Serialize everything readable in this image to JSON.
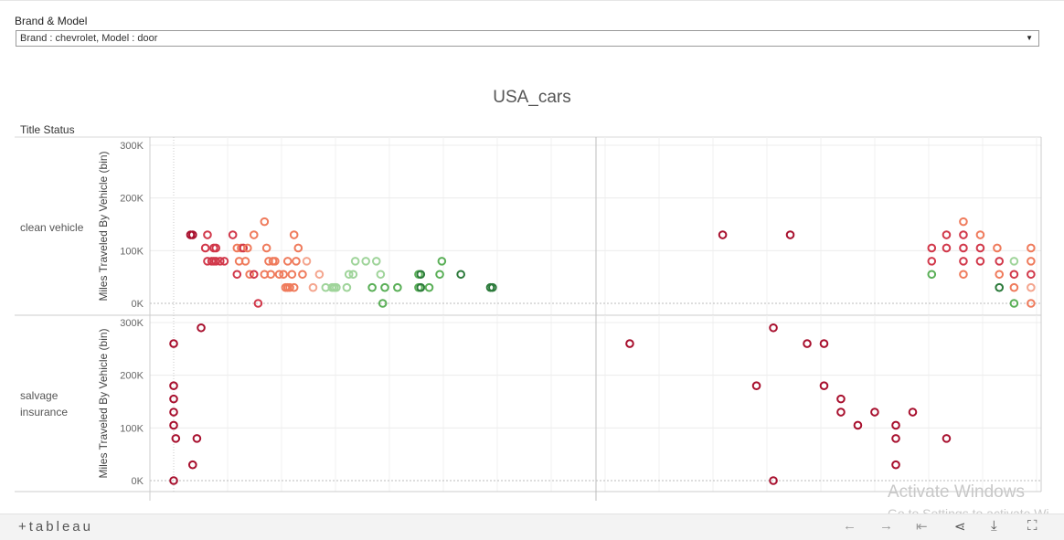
{
  "filter": {
    "title": "Brand & Model",
    "value": "Brand : chevrolet, Model : door"
  },
  "footer": {
    "logo_text": "+tableau"
  },
  "watermark": {
    "line1": "Activate Windows",
    "line2": "Go to Settings to activate Wi"
  },
  "chart_data": {
    "type": "scatter",
    "title": "USA_cars",
    "row_header": "Title Status",
    "ylabel": "Miles Traveled By Vehicle (bin)",
    "yticks": [
      "300K",
      "200K",
      "100K",
      "0K"
    ],
    "ylim": [
      0,
      300000
    ],
    "xlabel": "",
    "colors": {
      "deep_red": "#a8102e",
      "red": "#d1384a",
      "salmon": "#ef7b5c",
      "light_salmon": "#f4a58e",
      "light_green": "#9fd49a",
      "green": "#5aaf57",
      "dark_green": "#2c7a3b"
    },
    "panes": [
      {
        "label": "clean vehicle",
        "points": [
          {
            "x": 0.04,
            "y": 130000,
            "c": "deep_red"
          },
          {
            "x": 0.045,
            "y": 130000,
            "c": "deep_red"
          },
          {
            "x": 0.08,
            "y": 130000,
            "c": "red"
          },
          {
            "x": 0.075,
            "y": 105000,
            "c": "red"
          },
          {
            "x": 0.095,
            "y": 105000,
            "c": "red"
          },
          {
            "x": 0.1,
            "y": 105000,
            "c": "red"
          },
          {
            "x": 0.08,
            "y": 80000,
            "c": "red"
          },
          {
            "x": 0.09,
            "y": 80000,
            "c": "red"
          },
          {
            "x": 0.095,
            "y": 80000,
            "c": "red"
          },
          {
            "x": 0.1,
            "y": 80000,
            "c": "red"
          },
          {
            "x": 0.11,
            "y": 80000,
            "c": "red"
          },
          {
            "x": 0.12,
            "y": 80000,
            "c": "red"
          },
          {
            "x": 0.14,
            "y": 130000,
            "c": "red"
          },
          {
            "x": 0.155,
            "y": 80000,
            "c": "salmon"
          },
          {
            "x": 0.15,
            "y": 55000,
            "c": "red"
          },
          {
            "x": 0.15,
            "y": 105000,
            "c": "salmon"
          },
          {
            "x": 0.16,
            "y": 105000,
            "c": "salmon"
          },
          {
            "x": 0.165,
            "y": 105000,
            "c": "red"
          },
          {
            "x": 0.175,
            "y": 105000,
            "c": "salmon"
          },
          {
            "x": 0.17,
            "y": 80000,
            "c": "salmon"
          },
          {
            "x": 0.18,
            "y": 55000,
            "c": "salmon"
          },
          {
            "x": 0.19,
            "y": 55000,
            "c": "red"
          },
          {
            "x": 0.19,
            "y": 130000,
            "c": "salmon"
          },
          {
            "x": 0.2,
            "y": 0,
            "c": "red"
          },
          {
            "x": 0.215,
            "y": 155000,
            "c": "salmon"
          },
          {
            "x": 0.22,
            "y": 105000,
            "c": "salmon"
          },
          {
            "x": 0.215,
            "y": 55000,
            "c": "salmon"
          },
          {
            "x": 0.225,
            "y": 80000,
            "c": "salmon"
          },
          {
            "x": 0.23,
            "y": 55000,
            "c": "salmon"
          },
          {
            "x": 0.235,
            "y": 80000,
            "c": "salmon"
          },
          {
            "x": 0.24,
            "y": 80000,
            "c": "salmon"
          },
          {
            "x": 0.25,
            "y": 55000,
            "c": "salmon"
          },
          {
            "x": 0.26,
            "y": 55000,
            "c": "salmon"
          },
          {
            "x": 0.265,
            "y": 30000,
            "c": "salmon"
          },
          {
            "x": 0.27,
            "y": 30000,
            "c": "salmon"
          },
          {
            "x": 0.27,
            "y": 80000,
            "c": "salmon"
          },
          {
            "x": 0.275,
            "y": 30000,
            "c": "salmon"
          },
          {
            "x": 0.28,
            "y": 55000,
            "c": "salmon"
          },
          {
            "x": 0.285,
            "y": 30000,
            "c": "salmon"
          },
          {
            "x": 0.29,
            "y": 80000,
            "c": "salmon"
          },
          {
            "x": 0.285,
            "y": 130000,
            "c": "salmon"
          },
          {
            "x": 0.295,
            "y": 105000,
            "c": "salmon"
          },
          {
            "x": 0.305,
            "y": 55000,
            "c": "salmon"
          },
          {
            "x": 0.315,
            "y": 80000,
            "c": "light_salmon"
          },
          {
            "x": 0.33,
            "y": 30000,
            "c": "light_salmon"
          },
          {
            "x": 0.345,
            "y": 55000,
            "c": "light_salmon"
          },
          {
            "x": 0.36,
            "y": 30000,
            "c": "light_green"
          },
          {
            "x": 0.375,
            "y": 30000,
            "c": "light_green"
          },
          {
            "x": 0.38,
            "y": 30000,
            "c": "light_green"
          },
          {
            "x": 0.385,
            "y": 30000,
            "c": "light_green"
          },
          {
            "x": 0.41,
            "y": 30000,
            "c": "light_green"
          },
          {
            "x": 0.415,
            "y": 55000,
            "c": "light_green"
          },
          {
            "x": 0.425,
            "y": 55000,
            "c": "light_green"
          },
          {
            "x": 0.43,
            "y": 80000,
            "c": "light_green"
          },
          {
            "x": 0.455,
            "y": 80000,
            "c": "light_green"
          },
          {
            "x": 0.47,
            "y": 30000,
            "c": "green"
          },
          {
            "x": 0.48,
            "y": 80000,
            "c": "light_green"
          },
          {
            "x": 0.49,
            "y": 55000,
            "c": "light_green"
          },
          {
            "x": 0.495,
            "y": 0,
            "c": "green"
          },
          {
            "x": 0.5,
            "y": 30000,
            "c": "green"
          },
          {
            "x": 0.53,
            "y": 30000,
            "c": "green"
          },
          {
            "x": 0.58,
            "y": 30000,
            "c": "green"
          },
          {
            "x": 0.58,
            "y": 55000,
            "c": "green"
          },
          {
            "x": 0.585,
            "y": 30000,
            "c": "dark_green"
          },
          {
            "x": 0.585,
            "y": 55000,
            "c": "dark_green"
          },
          {
            "x": 0.605,
            "y": 30000,
            "c": "green"
          },
          {
            "x": 0.63,
            "y": 55000,
            "c": "green"
          },
          {
            "x": 0.635,
            "y": 80000,
            "c": "green"
          },
          {
            "x": 0.68,
            "y": 55000,
            "c": "dark_green"
          },
          {
            "x": 0.75,
            "y": 30000,
            "c": "dark_green"
          },
          {
            "x": 0.755,
            "y": 30000,
            "c": "dark_green"
          },
          {
            "x": 1.3,
            "y": 130000,
            "c": "deep_red"
          },
          {
            "x": 1.46,
            "y": 130000,
            "c": "deep_red"
          },
          {
            "x": 1.795,
            "y": 105000,
            "c": "red"
          },
          {
            "x": 1.795,
            "y": 80000,
            "c": "red"
          },
          {
            "x": 1.795,
            "y": 55000,
            "c": "green"
          },
          {
            "x": 1.83,
            "y": 130000,
            "c": "red"
          },
          {
            "x": 1.83,
            "y": 105000,
            "c": "red"
          },
          {
            "x": 1.87,
            "y": 155000,
            "c": "salmon"
          },
          {
            "x": 1.87,
            "y": 130000,
            "c": "red"
          },
          {
            "x": 1.87,
            "y": 105000,
            "c": "red"
          },
          {
            "x": 1.87,
            "y": 80000,
            "c": "red"
          },
          {
            "x": 1.87,
            "y": 55000,
            "c": "salmon"
          },
          {
            "x": 1.91,
            "y": 130000,
            "c": "salmon"
          },
          {
            "x": 1.91,
            "y": 105000,
            "c": "red"
          },
          {
            "x": 1.91,
            "y": 80000,
            "c": "red"
          },
          {
            "x": 1.95,
            "y": 105000,
            "c": "salmon"
          },
          {
            "x": 1.955,
            "y": 80000,
            "c": "red"
          },
          {
            "x": 1.955,
            "y": 55000,
            "c": "salmon"
          },
          {
            "x": 1.955,
            "y": 30000,
            "c": "dark_green"
          },
          {
            "x": 1.99,
            "y": 80000,
            "c": "light_green"
          },
          {
            "x": 1.99,
            "y": 55000,
            "c": "red"
          },
          {
            "x": 1.99,
            "y": 30000,
            "c": "salmon"
          },
          {
            "x": 1.99,
            "y": 0,
            "c": "green"
          },
          {
            "x": 2.03,
            "y": 105000,
            "c": "salmon"
          },
          {
            "x": 2.03,
            "y": 80000,
            "c": "salmon"
          },
          {
            "x": 2.03,
            "y": 55000,
            "c": "red"
          },
          {
            "x": 2.03,
            "y": 30000,
            "c": "light_salmon"
          },
          {
            "x": 2.03,
            "y": 0,
            "c": "salmon"
          }
        ]
      },
      {
        "label": "salvage insurance",
        "points": [
          {
            "x": 0.0,
            "y": 260000,
            "c": "deep_red"
          },
          {
            "x": 0.0,
            "y": 180000,
            "c": "deep_red"
          },
          {
            "x": 0.0,
            "y": 155000,
            "c": "deep_red"
          },
          {
            "x": 0.0,
            "y": 130000,
            "c": "deep_red"
          },
          {
            "x": 0.0,
            "y": 105000,
            "c": "deep_red"
          },
          {
            "x": 0.0,
            "y": 0,
            "c": "deep_red"
          },
          {
            "x": 0.005,
            "y": 80000,
            "c": "deep_red"
          },
          {
            "x": 0.045,
            "y": 30000,
            "c": "deep_red"
          },
          {
            "x": 0.055,
            "y": 80000,
            "c": "deep_red"
          },
          {
            "x": 0.065,
            "y": 290000,
            "c": "deep_red"
          },
          {
            "x": 1.08,
            "y": 260000,
            "c": "deep_red"
          },
          {
            "x": 1.38,
            "y": 180000,
            "c": "deep_red"
          },
          {
            "x": 1.42,
            "y": 290000,
            "c": "deep_red"
          },
          {
            "x": 1.42,
            "y": 0,
            "c": "deep_red"
          },
          {
            "x": 1.5,
            "y": 260000,
            "c": "deep_red"
          },
          {
            "x": 1.54,
            "y": 260000,
            "c": "deep_red"
          },
          {
            "x": 1.54,
            "y": 180000,
            "c": "deep_red"
          },
          {
            "x": 1.58,
            "y": 155000,
            "c": "deep_red"
          },
          {
            "x": 1.58,
            "y": 130000,
            "c": "deep_red"
          },
          {
            "x": 1.62,
            "y": 105000,
            "c": "deep_red"
          },
          {
            "x": 1.66,
            "y": 130000,
            "c": "deep_red"
          },
          {
            "x": 1.71,
            "y": 105000,
            "c": "deep_red"
          },
          {
            "x": 1.71,
            "y": 80000,
            "c": "deep_red"
          },
          {
            "x": 1.71,
            "y": 30000,
            "c": "deep_red"
          },
          {
            "x": 1.75,
            "y": 130000,
            "c": "deep_red"
          },
          {
            "x": 1.83,
            "y": 80000,
            "c": "deep_red"
          }
        ]
      }
    ]
  }
}
